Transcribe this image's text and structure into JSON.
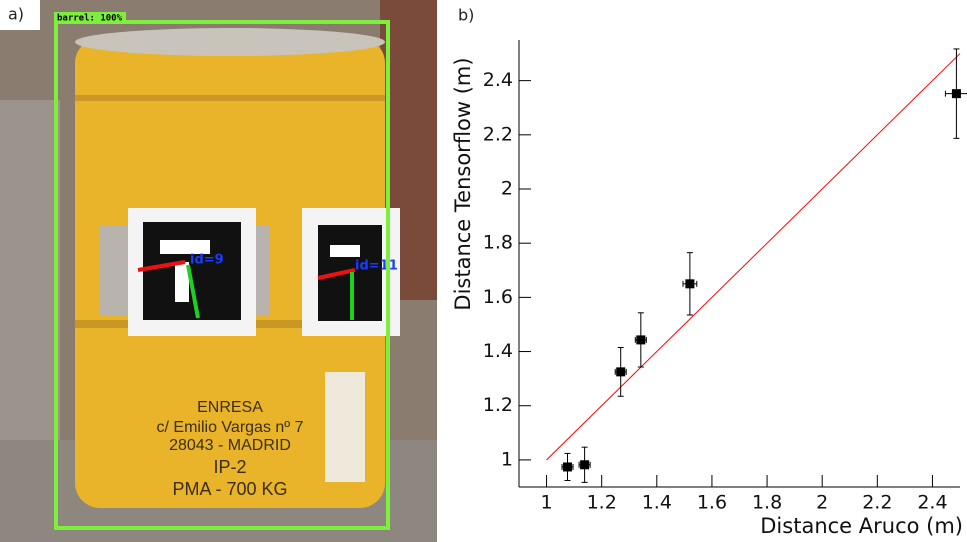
{
  "photo": {
    "label": "a)",
    "detection_label": "barrel: 100%",
    "marker_ids": [
      "id=9",
      "id=11"
    ],
    "drum_text": [
      "ENRESA",
      "c/ Emilio Vargas nº 7",
      "28043 - MADRID",
      "IP-2",
      "PMA - 700 KG"
    ]
  },
  "chart_data": {
    "type": "scatter",
    "panel_label": "b)",
    "x_label": "Distance Aruco (m)",
    "y_label": "Distance Tensorflow (m)",
    "xlim": [
      0.9,
      2.5
    ],
    "ylim": [
      0.9,
      2.55
    ],
    "xticks": [
      1,
      1.2,
      1.4,
      1.6,
      1.8,
      2,
      2.2,
      2.4
    ],
    "yticks": [
      1,
      1.2,
      1.4,
      1.6,
      1.8,
      2,
      2.2,
      2.4
    ],
    "series": [
      {
        "color": "#000000",
        "x": [
          1.076,
          1.138,
          1.269,
          1.342,
          1.52,
          2.487
        ],
        "values": [
          0.974,
          0.982,
          1.325,
          1.443,
          1.65,
          2.352
        ],
        "xerr": [
          0.02,
          0.02,
          0.02,
          0.02,
          0.025,
          0.04
        ],
        "yerr": [
          0.05,
          0.065,
          0.09,
          0.1,
          0.115,
          0.165
        ]
      }
    ],
    "fit_line": {
      "color": "#ff0000",
      "x": [
        1,
        2.5
      ],
      "values": [
        1,
        2.5
      ]
    }
  }
}
